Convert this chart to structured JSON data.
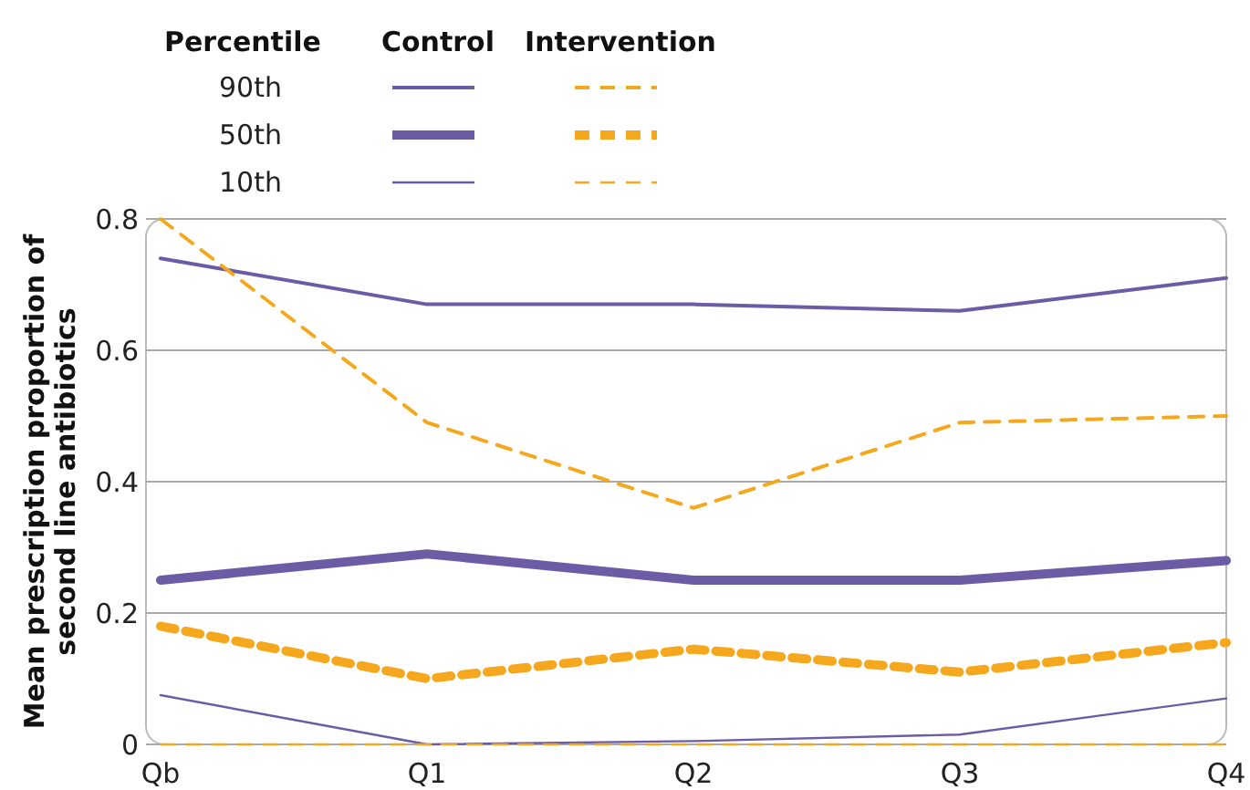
{
  "chart_data": {
    "type": "line",
    "ylabel": "Mean prescription proportion of second line antibiotics",
    "legend_title": "Percentile",
    "annotations": [
      "Control",
      "Intervention",
      "90th",
      "50th",
      "10th"
    ],
    "categories": [
      "Qb",
      "Q1",
      "Q2",
      "Q3",
      "Q4"
    ],
    "ylim": [
      0,
      0.8
    ],
    "yticks": [
      {
        "value": 0,
        "label": "0"
      },
      0.2,
      0.4,
      0.6,
      0.8
    ],
    "grid": "y",
    "marker": "none",
    "series": [
      {
        "color": "#6b5ca5",
        "line_style": "solid",
        "values": [
          0.74,
          0.67,
          0.67,
          0.66,
          0.71
        ]
      },
      {
        "color": "#6b5ca5",
        "line_style": "solid",
        "values": [
          0.25,
          0.29,
          0.25,
          0.25,
          0.28
        ]
      },
      {
        "color": "#6b5ca5",
        "line_style": "solid",
        "values": [
          0.075,
          0,
          0.005,
          0.015,
          0.07
        ]
      },
      {
        "color": "#f5a81d",
        "line_style": "dashed",
        "values": [
          0.8,
          0.49,
          0.36,
          0.49,
          0.5
        ]
      },
      {
        "color": "#f5a81d",
        "line_style": "dashed",
        "values": [
          0.18,
          0.1,
          0.145,
          0.11,
          0.155
        ]
      },
      {
        "color": "#f5a81d",
        "line_style": "dashed",
        "values": [
          0,
          0,
          0,
          0,
          0
        ]
      }
    ]
  }
}
